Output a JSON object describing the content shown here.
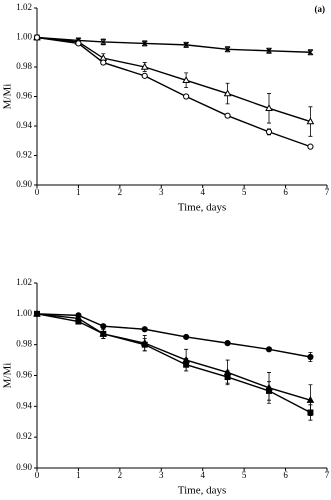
{
  "chart_data": [
    {
      "type": "line",
      "label": "(a)",
      "xlabel": "Time, days",
      "ylabel": "M/Mi",
      "x": [
        0,
        1,
        1.6,
        2.6,
        3.6,
        4.6,
        5.6,
        6.6
      ],
      "xlim": [
        0,
        7
      ],
      "ylim": [
        0.9,
        1.02
      ],
      "xticks": [
        0,
        1,
        2,
        3,
        4,
        5,
        6,
        7
      ],
      "yticks": [
        {
          "value": 0.9,
          "label": "0.90"
        },
        {
          "value": 0.92,
          "label": "0.92"
        },
        {
          "value": 0.94,
          "label": "0.94"
        },
        {
          "value": 0.96,
          "label": "0.96"
        },
        {
          "value": 0.98,
          "label": "0.98"
        },
        {
          "value": 1.0,
          "label": "1.00"
        },
        {
          "value": 1.02,
          "label": "1.02"
        }
      ],
      "series": [
        {
          "color": "#000000",
          "marker": "cross",
          "filled": false,
          "values": [
            1.0,
            0.998,
            0.997,
            0.996,
            0.995,
            0.992,
            0.991,
            0.99
          ],
          "errors": [
            0,
            0.001,
            0.002,
            0.001,
            0.001,
            0.001,
            0.001,
            0.001
          ]
        },
        {
          "color": "#000000",
          "marker": "triangle",
          "filled": false,
          "values": [
            1.0,
            0.997,
            0.986,
            0.98,
            0.971,
            0.962,
            0.952,
            0.943
          ],
          "errors": [
            0,
            0.002,
            0.003,
            0.003,
            0.005,
            0.007,
            0.01,
            0.01
          ]
        },
        {
          "color": "#000000",
          "marker": "circle",
          "filled": false,
          "values": [
            1.0,
            0.996,
            0.983,
            0.974,
            0.96,
            0.947,
            0.936,
            0.926
          ],
          "errors": [
            0,
            0.001,
            0.001,
            0.001,
            0.001,
            0.001,
            0.002,
            0.001
          ]
        }
      ]
    },
    {
      "type": "line",
      "xlabel": "Time, days",
      "ylabel": "M/Mi",
      "x": [
        0,
        1,
        1.6,
        2.6,
        3.6,
        4.6,
        5.6,
        6.6
      ],
      "xlim": [
        0,
        7
      ],
      "ylim": [
        0.9,
        1.02
      ],
      "xticks": [
        0,
        1,
        2,
        3,
        4,
        5,
        6,
        7
      ],
      "yticks": [
        {
          "value": 0.9,
          "label": "0.90"
        },
        {
          "value": 0.92,
          "label": "0.92"
        },
        {
          "value": 0.94,
          "label": "0.94"
        },
        {
          "value": 0.96,
          "label": "0.96"
        },
        {
          "value": 0.98,
          "label": "0.98"
        },
        {
          "value": 1.0,
          "label": "1.00"
        },
        {
          "value": 1.02,
          "label": "1.02"
        }
      ],
      "series": [
        {
          "color": "#000000",
          "marker": "circle",
          "filled": true,
          "values": [
            1.0,
            0.999,
            0.992,
            0.99,
            0.985,
            0.981,
            0.977,
            0.972
          ],
          "errors": [
            0,
            0.001,
            0.001,
            0.001,
            0.001,
            0.001,
            0.001,
            0.003
          ]
        },
        {
          "color": "#000000",
          "marker": "triangle",
          "filled": true,
          "values": [
            1.0,
            0.997,
            0.987,
            0.981,
            0.97,
            0.962,
            0.952,
            0.944
          ],
          "errors": [
            0,
            0.002,
            0.003,
            0.005,
            0.007,
            0.008,
            0.01,
            0.01
          ]
        },
        {
          "color": "#000000",
          "marker": "square",
          "filled": true,
          "values": [
            1.0,
            0.995,
            0.987,
            0.98,
            0.967,
            0.959,
            0.95,
            0.936
          ],
          "errors": [
            0,
            0.001,
            0.003,
            0.004,
            0.004,
            0.004,
            0.006,
            0.005
          ]
        }
      ]
    }
  ]
}
